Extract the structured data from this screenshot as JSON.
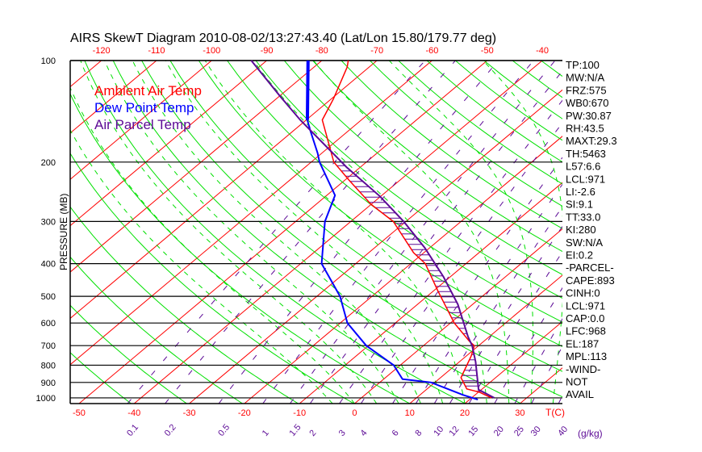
{
  "chart_data": {
    "type": "line",
    "title": "AIRS SkewT Diagram 2010-08-02/13:27:43.40 (Lat/Lon 15.80/179.77 deg)",
    "ylabel": "PRESSURE (MB)",
    "xlabel": "T(C)",
    "ylim": [
      1040,
      100
    ],
    "pressure_ticks": [
      100,
      200,
      300,
      400,
      500,
      600,
      700,
      800,
      900,
      1000
    ],
    "temp_ticks_top": [
      -120,
      -110,
      -100,
      -90,
      -80,
      -70,
      -60,
      -50,
      -40
    ],
    "temp_ticks_bottom": [
      -50,
      -40,
      -30,
      -20,
      -10,
      0,
      10,
      20,
      30
    ],
    "mixing_ratio_labels": [
      "0.1",
      "0.2",
      "0.5",
      "1",
      "1.5",
      "2",
      "3",
      "4",
      "6",
      "8",
      "10",
      "12",
      "15",
      "20",
      "25",
      "30",
      "40"
    ],
    "mixing_ratio_unit": "(g/kg)",
    "legend": [
      {
        "label": "Ambient Air Temp",
        "color": "#ff0000"
      },
      {
        "label": "Dew Point Temp",
        "color": "#0000ff"
      },
      {
        "label": "Air Parcel Temp",
        "color": "#5c0a96"
      }
    ],
    "series": [
      {
        "name": "Ambient Air Temp",
        "color": "#ff0000",
        "points": [
          {
            "p": 100,
            "t": -75.2
          },
          {
            "p": 104.5,
            "t": -74.0
          },
          {
            "p": 130,
            "t": -69.6
          },
          {
            "p": 150,
            "t": -67.1
          },
          {
            "p": 200,
            "t": -55.9
          },
          {
            "p": 226,
            "t": -49.3
          },
          {
            "p": 267,
            "t": -40.0
          },
          {
            "p": 300,
            "t": -32.3
          },
          {
            "p": 371,
            "t": -21.9
          },
          {
            "p": 400,
            "t": -17.4
          },
          {
            "p": 481,
            "t": -9.3
          },
          {
            "p": 600,
            "t": 0.7
          },
          {
            "p": 680,
            "t": 7.4
          },
          {
            "p": 700,
            "t": 9.2
          },
          {
            "p": 752,
            "t": 10.9
          },
          {
            "p": 871,
            "t": 13.7
          },
          {
            "p": 941,
            "t": 17.2
          },
          {
            "p": 962,
            "t": 20.2
          },
          {
            "p": 1000,
            "t": 23.6
          }
        ]
      },
      {
        "name": "Dew Point Temp",
        "color": "#0000ff",
        "points": [
          {
            "p": 100,
            "t": -82.5
          },
          {
            "p": 150,
            "t": -69.8
          },
          {
            "p": 160,
            "t": -67.3
          },
          {
            "p": 188,
            "t": -60.8
          },
          {
            "p": 200,
            "t": -58.5
          },
          {
            "p": 251,
            "t": -48.5
          },
          {
            "p": 300,
            "t": -44.7
          },
          {
            "p": 400,
            "t": -36.2
          },
          {
            "p": 500,
            "t": -25.8
          },
          {
            "p": 600,
            "t": -18.7
          },
          {
            "p": 700,
            "t": -10.4
          },
          {
            "p": 800,
            "t": -1.2
          },
          {
            "p": 880,
            "t": 3.4
          },
          {
            "p": 900,
            "t": 9.3
          },
          {
            "p": 980,
            "t": 17.8
          },
          {
            "p": 1012,
            "t": 21.5
          }
        ]
      },
      {
        "name": "Air Parcel Temp",
        "color": "#5c0a96",
        "points": [
          {
            "p": 100,
            "t": -92.8
          },
          {
            "p": 128,
            "t": -79.7
          },
          {
            "p": 150,
            "t": -71.1
          },
          {
            "p": 207,
            "t": -52.5
          },
          {
            "p": 252,
            "t": -40.3
          },
          {
            "p": 300,
            "t": -30.4
          },
          {
            "p": 359,
            "t": -20.9
          },
          {
            "p": 438,
            "t": -11.2
          },
          {
            "p": 528,
            "t": -2.7
          },
          {
            "p": 658,
            "t": 6.1
          },
          {
            "p": 700,
            "t": 8.8
          },
          {
            "p": 781,
            "t": 12.9
          },
          {
            "p": 946,
            "t": 19.5
          },
          {
            "p": 1000,
            "t": 24.1
          }
        ]
      }
    ],
    "colors": {
      "isotherm": "#ff0000",
      "dry_adiabat": "#00e000",
      "moist_adiabat": "#00e000",
      "mixing_ratio": "#5c0a96",
      "axis": "#000000"
    }
  },
  "indices": [
    "TP:100",
    "MW:N/A",
    "FRZ:575",
    "WB0:670",
    "PW:30.87",
    "RH:43.5",
    "MAXT:29.3",
    "TH:5463",
    "L57:6.6",
    "LCL:971",
    "LI:-2.6",
    "SI:9.1",
    "TT:33.0",
    "KI:280",
    "SW:N/A",
    "EI:0.2",
    "-PARCEL-",
    "CAPE:893",
    "CINH:0",
    "LCL:971",
    "CAP:0.0",
    "LFC:968",
    "EL:187",
    "MPL:113",
    "-WIND-",
    "NOT",
    "AVAIL"
  ]
}
